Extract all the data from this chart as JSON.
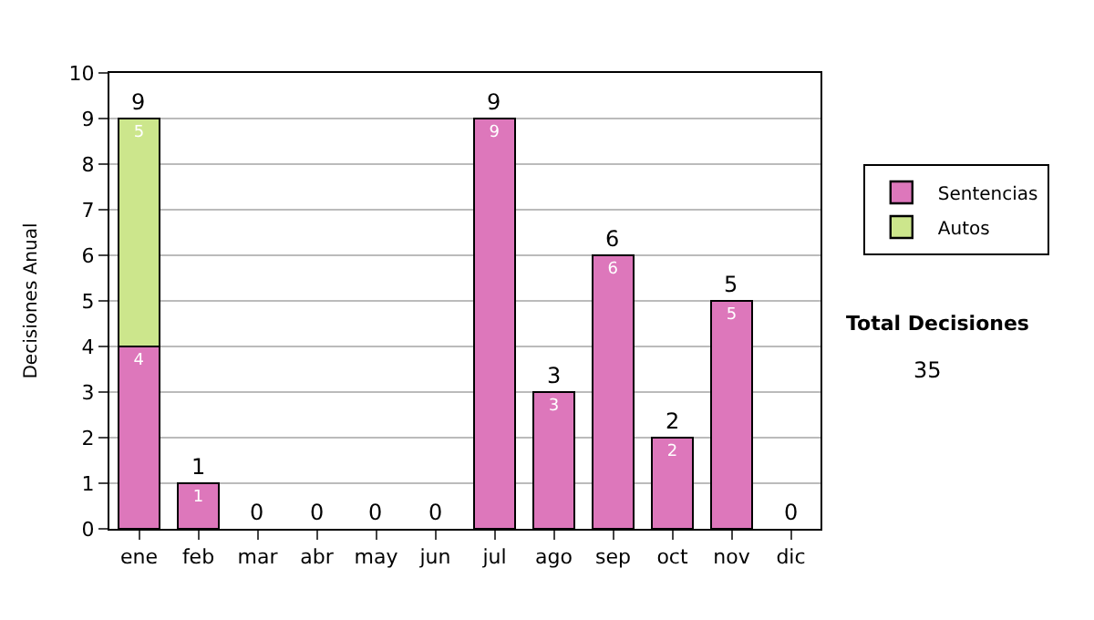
{
  "chart_data": {
    "type": "bar",
    "stacked": true,
    "ylabel": "Decisiones Anual",
    "categories": [
      "ene",
      "feb",
      "mar",
      "abr",
      "may",
      "jun",
      "jul",
      "ago",
      "sep",
      "oct",
      "nov",
      "dic"
    ],
    "series": [
      {
        "name": "Sentencias",
        "color": "#dd77bb",
        "values": [
          4,
          1,
          0,
          0,
          0,
          0,
          9,
          3,
          6,
          2,
          5,
          0
        ],
        "value_labels": [
          "4",
          "1",
          null,
          null,
          null,
          null,
          "9",
          "3",
          "6",
          "2",
          "5",
          null
        ]
      },
      {
        "name": "Autos",
        "color": "#cce68c",
        "values": [
          5,
          0,
          0,
          0,
          0,
          0,
          0,
          0,
          0,
          0,
          0,
          0
        ],
        "value_labels": [
          "5",
          null,
          null,
          null,
          null,
          null,
          null,
          null,
          null,
          null,
          null,
          null
        ]
      }
    ],
    "totals": [
      "9",
      "1",
      "0",
      "0",
      "0",
      "0",
      "9",
      "3",
      "6",
      "2",
      "5",
      "0"
    ],
    "ylim": [
      0,
      10
    ],
    "yticks": [
      0,
      1,
      2,
      3,
      4,
      5,
      6,
      7,
      8,
      9,
      10
    ],
    "grid": "y",
    "legend": "right",
    "annotations": [
      "Total Decisiones",
      "35"
    ]
  }
}
